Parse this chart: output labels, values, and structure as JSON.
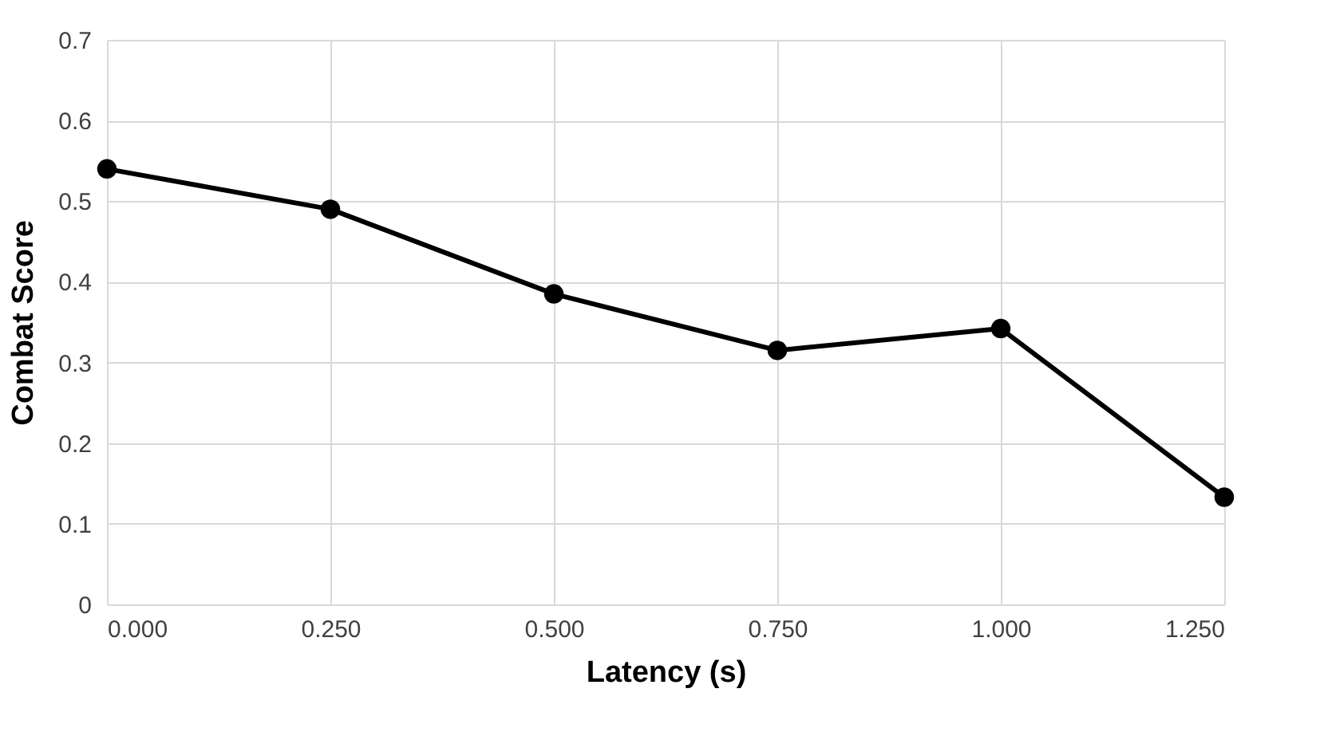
{
  "chart_data": {
    "type": "line",
    "xlabel": "Latency (s)",
    "ylabel": "Combat Score",
    "x": [
      0,
      0.25,
      0.5,
      0.75,
      1.0,
      1.25
    ],
    "series": [
      {
        "color": "#000000",
        "values": [
          0.54,
          0.49,
          0.385,
          0.315,
          0.342,
          0.133
        ]
      }
    ],
    "xlim": [
      0,
      1.25
    ],
    "xticks": [
      {
        "value": 0,
        "label": "0.000"
      },
      {
        "value": 0.25,
        "label": "0.250"
      },
      {
        "value": 0.5,
        "label": "0.500"
      },
      {
        "value": 0.75,
        "label": "0.750"
      },
      {
        "value": 1.0,
        "label": "1.000"
      },
      {
        "value": 1.25,
        "label": "1.250"
      }
    ],
    "ylim": [
      0,
      0.7
    ],
    "yticks": [
      0,
      0.1,
      0.2,
      0.3,
      0.4,
      0.5,
      0.6,
      0.7
    ],
    "grid": true,
    "marker": "circle",
    "line_style": "solid"
  }
}
